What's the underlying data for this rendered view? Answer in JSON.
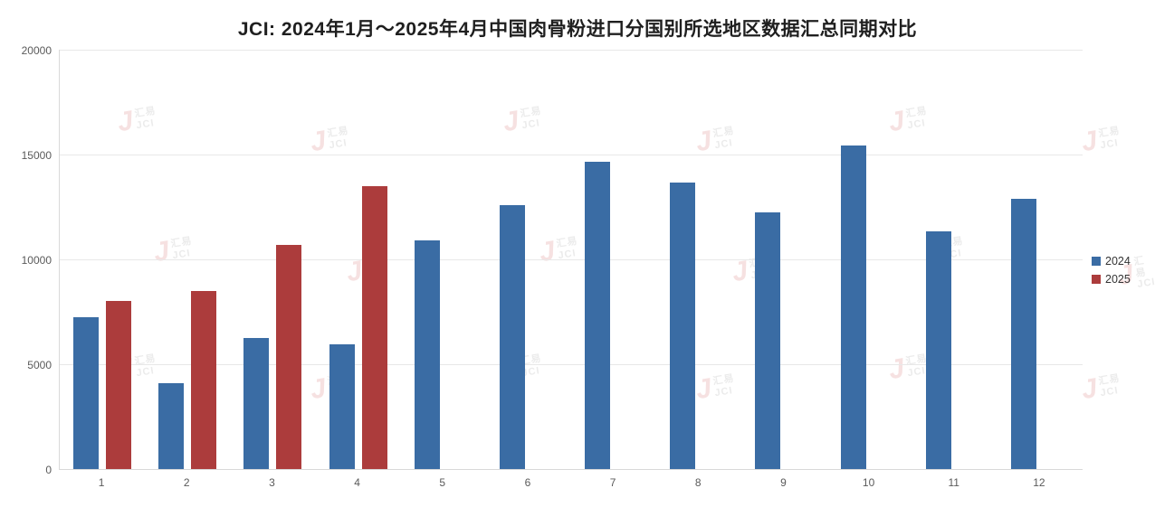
{
  "chart_data": {
    "type": "bar",
    "title": "JCI: 2024年1月～2025年4月中国肉骨粉进口分国别所选地区数据汇总同期对比",
    "categories": [
      "1",
      "2",
      "3",
      "4",
      "5",
      "6",
      "7",
      "8",
      "9",
      "10",
      "11",
      "12"
    ],
    "series": [
      {
        "name": "2024",
        "color": "#3A6CA4",
        "values": [
          7250,
          4100,
          6250,
          5950,
          10900,
          12600,
          14650,
          13650,
          12250,
          15450,
          11350,
          12900
        ]
      },
      {
        "name": "2025",
        "color": "#AC3C3C",
        "values": [
          8000,
          8500,
          10700,
          13500,
          null,
          null,
          null,
          null,
          null,
          null,
          null,
          null
        ]
      }
    ],
    "ylim": [
      0,
      20000
    ],
    "ytick_interval": 5000,
    "grid": true,
    "legend_position": "right",
    "xlabel": "",
    "ylabel": ""
  },
  "watermark": {
    "logo_glyph": "J",
    "line1": "汇易",
    "line2": "JCI"
  }
}
